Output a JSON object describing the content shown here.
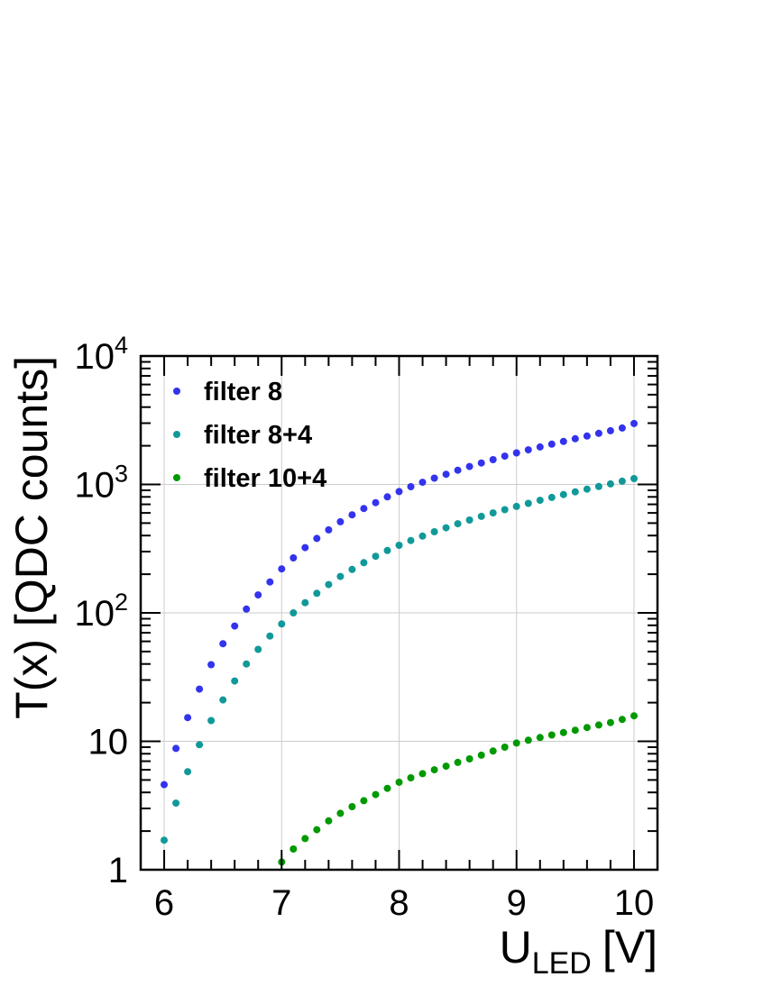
{
  "chart_data": {
    "type": "scatter",
    "title": "",
    "xlabel": "U",
    "xlabel_sub": "LED",
    "xlabel_unit": "[V]",
    "ylabel": "T(x) [QDC counts]",
    "xlim": [
      5.8,
      10.2
    ],
    "ylim": [
      1,
      10000
    ],
    "yscale": "log",
    "grid": true,
    "legend_position": "top-left",
    "x_ticks": [
      {
        "value": 6,
        "label": "6"
      },
      {
        "value": 7,
        "label": "7"
      },
      {
        "value": 8,
        "label": "8"
      },
      {
        "value": 9,
        "label": "9"
      },
      {
        "value": 10,
        "label": "10"
      }
    ],
    "y_ticks": [
      {
        "value": 1,
        "label": "1",
        "sup": ""
      },
      {
        "value": 10,
        "label": "10",
        "sup": ""
      },
      {
        "value": 100,
        "label": "10",
        "sup": "2"
      },
      {
        "value": 1000,
        "label": "10",
        "sup": "3"
      },
      {
        "value": 10000,
        "label": "10",
        "sup": "4"
      }
    ],
    "series": [
      {
        "name": "filter 8",
        "color": "#3333ee",
        "points": [
          [
            6.0,
            4.6
          ],
          [
            6.1,
            8.8
          ],
          [
            6.2,
            15.3
          ],
          [
            6.3,
            25.5
          ],
          [
            6.4,
            39.5
          ],
          [
            6.5,
            57.5
          ],
          [
            6.6,
            79
          ],
          [
            6.7,
            107
          ],
          [
            6.8,
            138
          ],
          [
            6.9,
            174
          ],
          [
            7.0,
            220
          ],
          [
            7.1,
            268
          ],
          [
            7.2,
            322
          ],
          [
            7.3,
            380
          ],
          [
            7.4,
            443
          ],
          [
            7.5,
            512
          ],
          [
            7.6,
            580
          ],
          [
            7.7,
            650
          ],
          [
            7.8,
            722
          ],
          [
            7.9,
            800
          ],
          [
            8.0,
            880
          ],
          [
            8.1,
            960
          ],
          [
            8.2,
            1040
          ],
          [
            8.3,
            1120
          ],
          [
            8.4,
            1200
          ],
          [
            8.5,
            1290
          ],
          [
            8.6,
            1380
          ],
          [
            8.7,
            1470
          ],
          [
            8.8,
            1560
          ],
          [
            8.9,
            1660
          ],
          [
            9.0,
            1760
          ],
          [
            9.1,
            1860
          ],
          [
            9.2,
            1960
          ],
          [
            9.3,
            2060
          ],
          [
            9.4,
            2160
          ],
          [
            9.5,
            2270
          ],
          [
            9.6,
            2380
          ],
          [
            9.7,
            2500
          ],
          [
            9.8,
            2620
          ],
          [
            9.9,
            2750
          ],
          [
            10.0,
            2980
          ]
        ]
      },
      {
        "name": "filter 8+4",
        "color": "#119999",
        "points": [
          [
            6.0,
            1.7
          ],
          [
            6.1,
            3.3
          ],
          [
            6.2,
            5.8
          ],
          [
            6.3,
            9.4
          ],
          [
            6.4,
            14.5
          ],
          [
            6.5,
            21
          ],
          [
            6.6,
            29.5
          ],
          [
            6.7,
            40
          ],
          [
            6.8,
            52
          ],
          [
            6.9,
            66
          ],
          [
            7.0,
            82
          ],
          [
            7.1,
            100
          ],
          [
            7.2,
            120
          ],
          [
            7.3,
            142
          ],
          [
            7.4,
            166
          ],
          [
            7.5,
            192
          ],
          [
            7.6,
            218
          ],
          [
            7.7,
            246
          ],
          [
            7.8,
            276
          ],
          [
            7.9,
            306
          ],
          [
            8.0,
            336
          ],
          [
            8.1,
            366
          ],
          [
            8.2,
            396
          ],
          [
            8.3,
            428
          ],
          [
            8.4,
            460
          ],
          [
            8.5,
            494
          ],
          [
            8.6,
            528
          ],
          [
            8.7,
            564
          ],
          [
            8.8,
            600
          ],
          [
            8.9,
            636
          ],
          [
            9.0,
            674
          ],
          [
            9.1,
            712
          ],
          [
            9.2,
            752
          ],
          [
            9.3,
            792
          ],
          [
            9.4,
            834
          ],
          [
            9.5,
            876
          ],
          [
            9.6,
            920
          ],
          [
            9.7,
            964
          ],
          [
            9.8,
            1010
          ],
          [
            9.9,
            1060
          ],
          [
            10.0,
            1110
          ]
        ]
      },
      {
        "name": "filter 10+4",
        "color": "#009900",
        "points": [
          [
            7.0,
            1.15
          ],
          [
            7.1,
            1.45
          ],
          [
            7.2,
            1.75
          ],
          [
            7.3,
            2.05
          ],
          [
            7.4,
            2.4
          ],
          [
            7.5,
            2.75
          ],
          [
            7.6,
            3.1
          ],
          [
            7.7,
            3.45
          ],
          [
            7.8,
            3.85
          ],
          [
            7.9,
            4.3
          ],
          [
            8.0,
            4.8
          ],
          [
            8.1,
            5.2
          ],
          [
            8.2,
            5.6
          ],
          [
            8.3,
            6.0
          ],
          [
            8.4,
            6.4
          ],
          [
            8.5,
            6.85
          ],
          [
            8.6,
            7.3
          ],
          [
            8.7,
            7.8
          ],
          [
            8.8,
            8.4
          ],
          [
            8.9,
            9.0
          ],
          [
            9.0,
            9.7
          ],
          [
            9.1,
            10.2
          ],
          [
            9.2,
            10.7
          ],
          [
            9.3,
            11.2
          ],
          [
            9.4,
            11.7
          ],
          [
            9.5,
            12.2
          ],
          [
            9.6,
            12.8
          ],
          [
            9.7,
            13.4
          ],
          [
            9.8,
            14.0
          ],
          [
            9.9,
            14.8
          ],
          [
            10.0,
            15.8
          ]
        ]
      }
    ]
  }
}
